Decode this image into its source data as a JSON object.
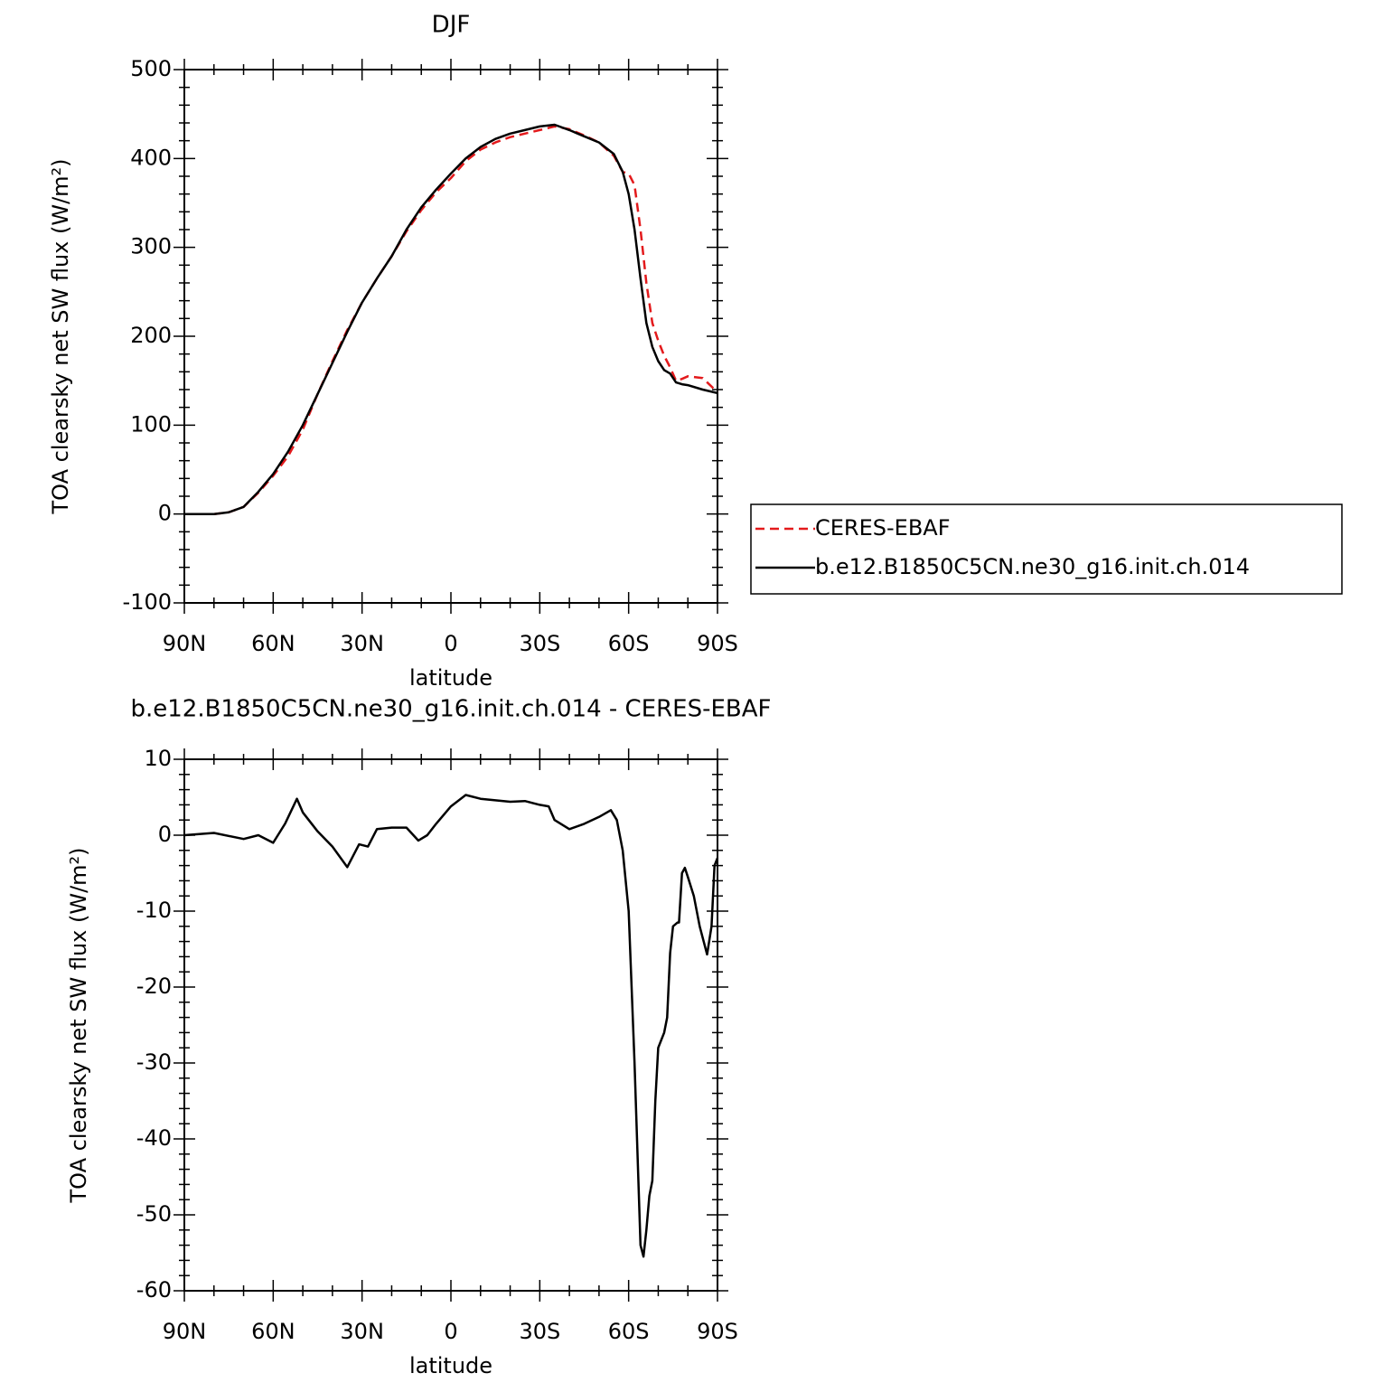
{
  "chart_data": [
    {
      "type": "line",
      "title": "DJF",
      "xlabel": "latitude",
      "ylabel": "TOA clearsky net SW flux (W/m²)",
      "x": [
        90,
        85,
        80,
        75,
        70,
        65,
        60,
        55,
        50,
        45,
        40,
        35,
        30,
        25,
        20,
        15,
        10,
        5,
        0,
        -5,
        -10,
        -15,
        -20,
        -25,
        -30,
        -35,
        -40,
        -45,
        -50,
        -55,
        -58,
        -60,
        -62,
        -64,
        -66,
        -68,
        -70,
        -72,
        -74,
        -76,
        -78,
        -80,
        -85,
        -90
      ],
      "series": [
        {
          "name": "CERES-EBAF",
          "color": "#e31a1c",
          "line_style": "dashed",
          "values": [
            0,
            0,
            0,
            2,
            8,
            24,
            43,
            65,
            95,
            135,
            172,
            207,
            238,
            265,
            290,
            318,
            342,
            362,
            378,
            397,
            410,
            418,
            424,
            428,
            432,
            436,
            433,
            426,
            418,
            403,
            385,
            383,
            370,
            320,
            260,
            215,
            195,
            178,
            165,
            150,
            152,
            155,
            153,
            137
          ]
        },
        {
          "name": "b.e12.B1850C5CN.ne30_g16.init.ch.014",
          "color": "#000000",
          "line_style": "solid",
          "values": [
            0,
            0,
            0,
            2,
            8,
            25,
            45,
            70,
            100,
            135,
            170,
            205,
            238,
            265,
            290,
            320,
            345,
            365,
            383,
            400,
            413,
            422,
            428,
            432,
            436,
            438,
            432,
            425,
            418,
            405,
            385,
            360,
            320,
            265,
            215,
            188,
            172,
            162,
            158,
            148,
            146,
            145,
            140,
            136
          ]
        }
      ],
      "xlim": [
        90,
        -90
      ],
      "xticks": [
        {
          "value": 90,
          "label": "90N"
        },
        {
          "value": 60,
          "label": "60N"
        },
        {
          "value": 30,
          "label": "30N"
        },
        0,
        {
          "value": -30,
          "label": "30S"
        },
        {
          "value": -60,
          "label": "60S"
        },
        {
          "value": -90,
          "label": "90S"
        }
      ],
      "ylim": [
        -100,
        500
      ],
      "yticks": [
        -100,
        0,
        100,
        200,
        300,
        400,
        500
      ],
      "legend": "right"
    },
    {
      "type": "line",
      "title": "b.e12.B1850C5CN.ne30_g16.init.ch.014 - CERES-EBAF",
      "xlabel": "latitude",
      "ylabel": "TOA clearsky net SW flux (W/m²)",
      "x": [
        90,
        80,
        70,
        65,
        60,
        56,
        52,
        50,
        45,
        40,
        35,
        31,
        28,
        25,
        20,
        15,
        11,
        8,
        5,
        0,
        -5,
        -10,
        -15,
        -20,
        -25,
        -30,
        -33,
        -35,
        -40,
        -45,
        -50,
        -54,
        -56,
        -58,
        -60,
        -62,
        -64,
        -65,
        -66,
        -67,
        -68,
        -69,
        -70,
        -72,
        -73,
        -74,
        -75,
        -76.5,
        -77,
        -78,
        -79,
        -80,
        -82,
        -84,
        -86.5,
        -88,
        -89,
        -90
      ],
      "values": [
        0,
        0.3,
        -0.5,
        0,
        -1,
        1.5,
        4.8,
        3,
        0.5,
        -1.5,
        -4.2,
        -1.2,
        -1.5,
        0.8,
        1,
        1,
        -0.7,
        0,
        1.5,
        3.8,
        5.3,
        4.8,
        4.6,
        4.4,
        4.5,
        4,
        3.8,
        2,
        0.8,
        1.5,
        2.4,
        3.3,
        2,
        -2,
        -10,
        -30,
        -54,
        -55.5,
        -52,
        -47.5,
        -45.5,
        -35,
        -28,
        -26,
        -24,
        -15.5,
        -12,
        -11.5,
        -11.5,
        -5,
        -4.3,
        -5.5,
        -8,
        -12,
        -15.7,
        -12,
        -4,
        -3
      ],
      "color": "#000000",
      "xlim": [
        90,
        -90
      ],
      "xticks": [
        {
          "value": 90,
          "label": "90N"
        },
        {
          "value": 60,
          "label": "60N"
        },
        {
          "value": 30,
          "label": "30N"
        },
        0,
        {
          "value": -30,
          "label": "30S"
        },
        {
          "value": -60,
          "label": "60S"
        },
        {
          "value": -90,
          "label": "90S"
        }
      ],
      "ylim": [
        -60,
        10
      ],
      "yticks": [
        -60,
        -50,
        -40,
        -30,
        -20,
        -10,
        0,
        10
      ]
    }
  ]
}
